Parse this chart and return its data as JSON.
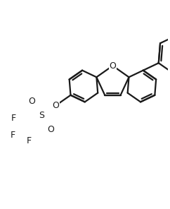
{
  "bg_color": "#ffffff",
  "line_color": "#1a1a1a",
  "line_width": 1.6,
  "figsize": [
    2.42,
    2.96
  ],
  "dpi": 100,
  "xlim": [
    -2.8,
    2.8
  ],
  "ylim": [
    -3.5,
    3.2
  ]
}
